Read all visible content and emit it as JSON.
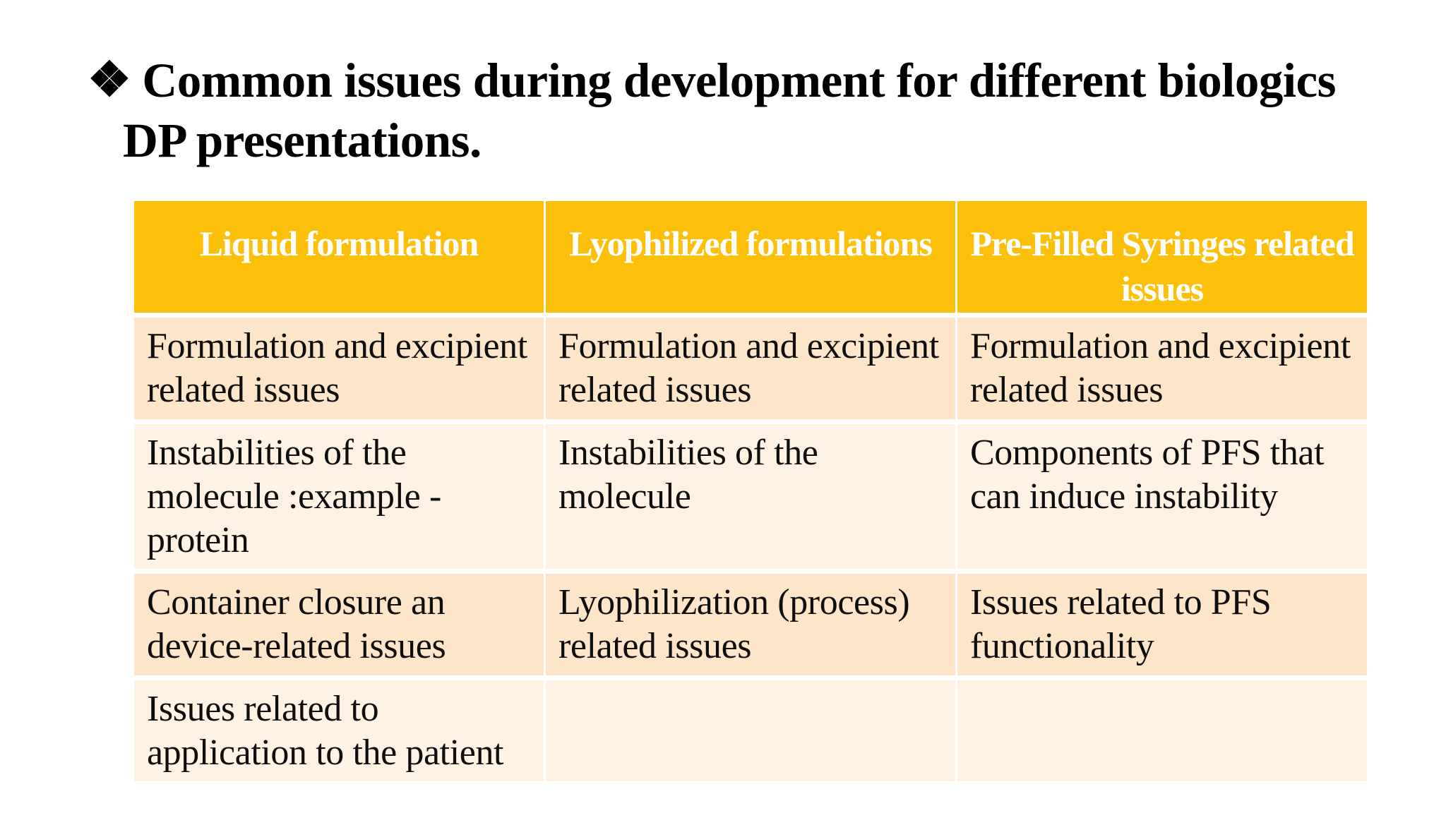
{
  "title": {
    "bullet": "❖",
    "line1": "Common issues during development for different biologics",
    "line2": "DP presentations."
  },
  "table": {
    "headers": [
      "Liquid formulation",
      "Lyophilized formulations",
      "Pre-Filled Syringes related issues"
    ],
    "rows": [
      [
        "Formulation and excipient related issues",
        "Formulation and excipient related issues",
        "Formulation and excipient related issues"
      ],
      [
        "Instabilities of the molecule :example - protein",
        "Instabilities of the molecule",
        "Components of PFS that can induce instability"
      ],
      [
        "Container closure an device-related issues",
        "Lyophilization (process) related issues",
        "Issues related to PFS functionality"
      ],
      [
        "Issues related to application to the patient",
        "",
        ""
      ]
    ]
  },
  "colors": {
    "header_bg": "#FCC00A",
    "row_band_dark": "#FDE5C9",
    "row_band_light": "#FEF2E4",
    "header_text": "#FFFFFF",
    "body_text": "#0E0E0E"
  }
}
